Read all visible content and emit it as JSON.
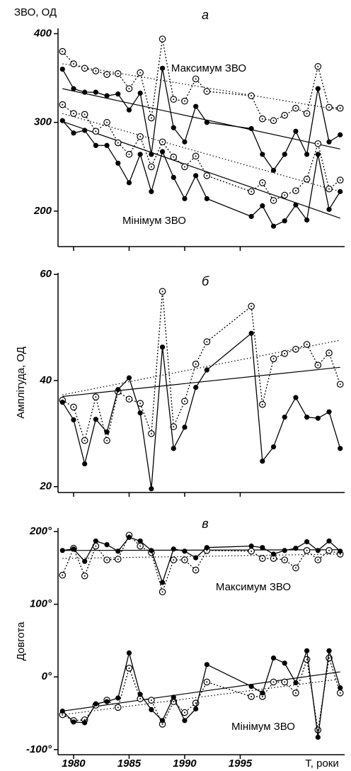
{
  "chart_data": [
    {
      "type": "line",
      "ylabel": "ЗВО, ОД",
      "annotations": [
        "а",
        "Максимум ЗВО",
        "Мінімум ЗВО"
      ],
      "xlim": [
        1978.6,
        2004.4
      ],
      "xticks": [
        1980,
        1985,
        1990,
        1995
      ],
      "ylim": [
        160,
        406
      ],
      "yticks": [
        200,
        300,
        400
      ],
      "x": [
        1979,
        1980,
        1981,
        1982,
        1983,
        1984,
        1985,
        1986,
        1987,
        1988,
        1989,
        1990,
        1991,
        1992,
        1996,
        1997,
        1998,
        1999,
        2000,
        2001,
        2002,
        2003,
        2004
      ],
      "series": [
        {
          "color": "#000000",
          "marker": "open",
          "line": "dotted",
          "values": [
            380,
            366,
            361,
            358,
            354,
            355,
            338,
            356,
            305,
            394,
            326,
            324,
            349,
            335,
            330,
            304,
            302,
            308,
            316,
            310,
            363,
            317,
            316
          ]
        },
        {
          "color": "#000000",
          "marker": "filled",
          "line": "solid",
          "values": [
            360,
            338,
            334,
            334,
            330,
            332,
            314,
            333,
            264,
            361,
            294,
            278,
            318,
            300,
            293,
            264,
            246,
            264,
            290,
            264,
            338,
            278,
            286
          ]
        },
        {
          "color": "#000000",
          "marker": "open",
          "line": "dotted",
          "values": [
            320,
            310,
            309,
            290,
            300,
            277,
            264,
            284,
            250,
            278,
            261,
            250,
            262,
            240,
            222,
            232,
            212,
            218,
            223,
            236,
            276,
            225,
            235
          ]
        },
        {
          "color": "#000000",
          "marker": "filled",
          "line": "solid",
          "values": [
            302,
            288,
            291,
            274,
            274,
            254,
            232,
            264,
            222,
            267,
            238,
            214,
            240,
            214,
            194,
            206,
            183,
            189,
            207,
            190,
            264,
            202,
            222
          ]
        }
      ],
      "trend_lines": [
        {
          "x": [
            1979,
            2004
          ],
          "values": [
            338,
            270
          ],
          "line": "solid"
        },
        {
          "x": [
            1979,
            2004
          ],
          "values": [
            366,
            314
          ],
          "line": "dotted"
        },
        {
          "x": [
            1979,
            2004
          ],
          "values": [
            310,
            222
          ],
          "line": "dotted"
        },
        {
          "x": [
            1979,
            2004
          ],
          "values": [
            301,
            192
          ],
          "line": "solid"
        }
      ]
    },
    {
      "type": "line",
      "ylabel": "Амплітуда, ОД",
      "annotations": [
        "б"
      ],
      "xlim": [
        1978.6,
        2004.4
      ],
      "xticks": [
        1980,
        1985,
        1990,
        1995
      ],
      "ylim": [
        18.9,
        60.3
      ],
      "yticks": [
        20,
        40,
        60
      ],
      "x": [
        1979,
        1980,
        1981,
        1982,
        1983,
        1984,
        1985,
        1986,
        1987,
        1988,
        1989,
        1990,
        1991,
        1992,
        1996,
        1997,
        1998,
        1999,
        2000,
        2001,
        2002,
        2003,
        2004
      ],
      "series": [
        {
          "color": "#000000",
          "marker": "open",
          "line": "dotted",
          "values": [
            36.3,
            35,
            28.7,
            36.9,
            28.7,
            37.9,
            36.5,
            35.7,
            30,
            56.8,
            31.3,
            36.1,
            43.1,
            47.3,
            54,
            35.5,
            44.1,
            45.1,
            45.9,
            46.8,
            42.9,
            45.2,
            39.3
          ]
        },
        {
          "color": "#000000",
          "marker": "filled",
          "line": "solid",
          "values": [
            35.9,
            32.6,
            24.3,
            32.7,
            30.3,
            38.3,
            40.5,
            33.9,
            19.6,
            46.3,
            27.2,
            31.2,
            38.7,
            42,
            48.9,
            24.8,
            27.5,
            33.1,
            36.8,
            33.1,
            32.9,
            34.1,
            27.2
          ]
        }
      ],
      "trend_lines": [
        {
          "x": [
            1979,
            2004
          ],
          "values": [
            37,
            42.5
          ],
          "line": "solid"
        },
        {
          "x": [
            1979,
            2004
          ],
          "values": [
            37.3,
            47.6
          ],
          "line": "dotted"
        }
      ]
    },
    {
      "type": "line",
      "ylabel": "Довгота",
      "annotations": [
        "в",
        "Максимум ЗВО",
        "Мінімум ЗВО"
      ],
      "xlabel": "T, роки",
      "xlim": [
        1978.6,
        2004.4
      ],
      "xticks": [
        1980,
        1985,
        1990,
        1995
      ],
      "ylim": [
        -107,
        205
      ],
      "yticks": [
        {
          "value": -100,
          "label": "-100°"
        },
        {
          "value": 0,
          "label": "0°"
        },
        {
          "value": 100,
          "label": "100°"
        },
        {
          "value": 200,
          "label": "200°"
        }
      ],
      "x": [
        1979,
        1980,
        1981,
        1982,
        1983,
        1984,
        1985,
        1986,
        1987,
        1988,
        1989,
        1990,
        1991,
        1992,
        1996,
        1997,
        1998,
        1999,
        2000,
        2001,
        2002,
        2003,
        2004
      ],
      "series": [
        {
          "color": "#000000",
          "marker": "open",
          "line": "dotted",
          "values": [
            140,
            177,
            139,
            180,
            161,
            162,
            195,
            180,
            171,
            117,
            161,
            161,
            147,
            174,
            173,
            163,
            163,
            161,
            150,
            174,
            161,
            174,
            169
          ]
        },
        {
          "color": "#000000",
          "marker": "filled",
          "line": "solid",
          "values": [
            174,
            176,
            159,
            187,
            182,
            173,
            192,
            187,
            174,
            130,
            176,
            173,
            164,
            178,
            180,
            178,
            169,
            174,
            177,
            186,
            174,
            187,
            173
          ]
        },
        {
          "color": "#000000",
          "marker": "open",
          "line": "dotted",
          "values": [
            -52,
            -60,
            -59,
            -39,
            -32,
            -42,
            12,
            -30,
            -32,
            -65,
            -34,
            -49,
            -36,
            -7,
            -27,
            -27,
            -7,
            -7,
            -22,
            24,
            -73,
            26,
            -22
          ]
        },
        {
          "color": "#000000",
          "marker": "filled",
          "line": "solid",
          "values": [
            -47,
            -62,
            -63,
            -37,
            -34,
            -29,
            33,
            -24,
            -45,
            -60,
            -28,
            -60,
            -44,
            17,
            -13,
            -22,
            26,
            19,
            -8,
            36,
            -83,
            36,
            -15
          ]
        }
      ],
      "trend_lines": [
        {
          "x": [
            1979,
            2004
          ],
          "values": [
            174,
            175
          ],
          "line": "solid"
        },
        {
          "x": [
            1979,
            2004
          ],
          "values": [
            163,
            169
          ],
          "line": "dotted"
        },
        {
          "x": [
            1979,
            2004
          ],
          "values": [
            -47,
            7
          ],
          "line": "solid"
        },
        {
          "x": [
            1979,
            2004
          ],
          "values": [
            -52,
            -3
          ],
          "line": "dotted"
        }
      ]
    }
  ]
}
